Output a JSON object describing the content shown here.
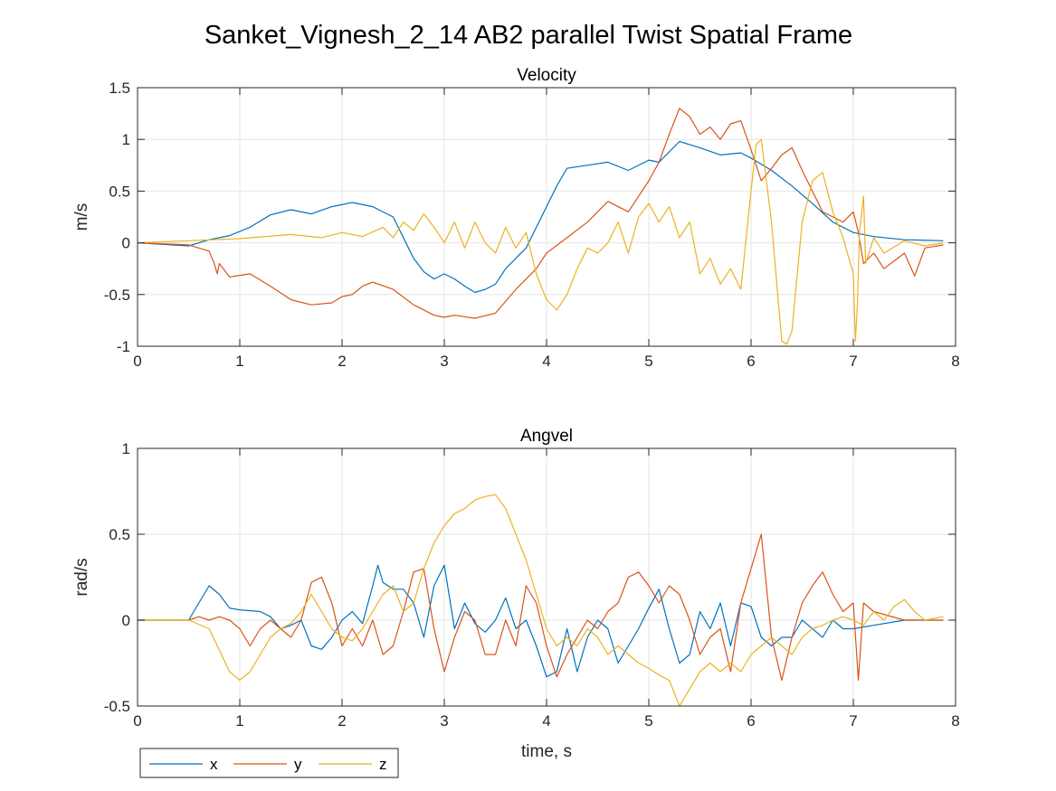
{
  "figure_title": "Sanket_Vignesh_2_14 AB2 parallel Twist Spatial Frame",
  "legend": [
    "x",
    "y",
    "z"
  ],
  "colors": {
    "x": "#0072BD",
    "y": "#D95319",
    "z": "#EDB120",
    "grid": "#e6e6e6",
    "axis": "#262626"
  },
  "chart_data": [
    {
      "type": "line",
      "title": "Velocity",
      "xlabel": "",
      "ylabel": "m/s",
      "xlim": [
        0,
        8
      ],
      "ylim": [
        -1,
        1.5
      ],
      "xticks": [
        "0",
        "1",
        "2",
        "3",
        "4",
        "5",
        "6",
        "7",
        "8"
      ],
      "yticks": [
        "-1",
        "-0.5",
        "0",
        "0.5",
        "1",
        "1.5"
      ],
      "grid": true,
      "series": [
        {
          "name": "x",
          "x": [
            0,
            0.5,
            0.7,
            0.9,
            1.1,
            1.3,
            1.5,
            1.7,
            1.9,
            2.1,
            2.3,
            2.5,
            2.6,
            2.7,
            2.8,
            2.9,
            3.0,
            3.1,
            3.2,
            3.3,
            3.4,
            3.5,
            3.6,
            3.8,
            4.0,
            4.1,
            4.2,
            4.4,
            4.6,
            4.8,
            5.0,
            5.1,
            5.3,
            5.5,
            5.7,
            5.9,
            6.0,
            6.2,
            6.4,
            6.6,
            6.8,
            7.0,
            7.2,
            7.5,
            7.88
          ],
          "y": [
            0,
            -0.03,
            0.03,
            0.07,
            0.15,
            0.27,
            0.32,
            0.28,
            0.35,
            0.39,
            0.35,
            0.25,
            0.05,
            -0.15,
            -0.28,
            -0.35,
            -0.3,
            -0.35,
            -0.42,
            -0.48,
            -0.45,
            -0.4,
            -0.25,
            -0.05,
            0.35,
            0.55,
            0.72,
            0.75,
            0.78,
            0.7,
            0.8,
            0.78,
            0.98,
            0.92,
            0.85,
            0.87,
            0.82,
            0.7,
            0.55,
            0.38,
            0.2,
            0.1,
            0.06,
            0.03,
            0.02
          ]
        },
        {
          "name": "y",
          "x": [
            0,
            0.5,
            0.7,
            0.75,
            0.78,
            0.8,
            0.9,
            1.1,
            1.3,
            1.5,
            1.7,
            1.9,
            2.0,
            2.1,
            2.2,
            2.3,
            2.5,
            2.7,
            2.9,
            3.0,
            3.1,
            3.3,
            3.5,
            3.7,
            3.9,
            4.0,
            4.2,
            4.4,
            4.6,
            4.8,
            5.0,
            5.1,
            5.2,
            5.3,
            5.4,
            5.5,
            5.6,
            5.7,
            5.8,
            5.9,
            6.0,
            6.1,
            6.2,
            6.3,
            6.4,
            6.5,
            6.7,
            6.8,
            6.9,
            7.0,
            7.05,
            7.1,
            7.2,
            7.3,
            7.5,
            7.6,
            7.7,
            7.88
          ],
          "y": [
            0,
            -0.02,
            -0.08,
            -0.2,
            -0.3,
            -0.2,
            -0.33,
            -0.3,
            -0.42,
            -0.55,
            -0.6,
            -0.58,
            -0.52,
            -0.5,
            -0.42,
            -0.38,
            -0.45,
            -0.6,
            -0.7,
            -0.72,
            -0.7,
            -0.73,
            -0.68,
            -0.45,
            -0.25,
            -0.1,
            0.05,
            0.2,
            0.4,
            0.3,
            0.6,
            0.78,
            1.05,
            1.3,
            1.22,
            1.05,
            1.12,
            1.0,
            1.15,
            1.18,
            0.9,
            0.6,
            0.72,
            0.85,
            0.92,
            0.7,
            0.3,
            0.25,
            0.2,
            0.3,
            0.1,
            -0.2,
            -0.1,
            -0.25,
            -0.1,
            -0.32,
            -0.05,
            -0.02
          ]
        },
        {
          "name": "z",
          "x": [
            0,
            0.5,
            1.0,
            1.5,
            1.8,
            2.0,
            2.2,
            2.4,
            2.5,
            2.6,
            2.7,
            2.8,
            2.9,
            3.0,
            3.1,
            3.2,
            3.3,
            3.4,
            3.5,
            3.6,
            3.7,
            3.8,
            3.9,
            4.0,
            4.1,
            4.2,
            4.3,
            4.4,
            4.5,
            4.6,
            4.7,
            4.8,
            4.9,
            5.0,
            5.1,
            5.2,
            5.3,
            5.4,
            5.5,
            5.6,
            5.7,
            5.8,
            5.9,
            6.0,
            6.05,
            6.1,
            6.2,
            6.3,
            6.35,
            6.4,
            6.5,
            6.6,
            6.7,
            6.8,
            6.9,
            7.0,
            7.02,
            7.04,
            7.06,
            7.1,
            7.12,
            7.2,
            7.3,
            7.5,
            7.7,
            7.88
          ],
          "y": [
            0,
            0.02,
            0.04,
            0.08,
            0.05,
            0.1,
            0.06,
            0.15,
            0.05,
            0.2,
            0.12,
            0.28,
            0.15,
            0.0,
            0.2,
            -0.05,
            0.2,
            0.0,
            -0.1,
            0.15,
            -0.05,
            0.1,
            -0.3,
            -0.55,
            -0.65,
            -0.5,
            -0.25,
            -0.05,
            -0.1,
            0.0,
            0.2,
            -0.1,
            0.25,
            0.38,
            0.2,
            0.35,
            0.05,
            0.2,
            -0.3,
            -0.15,
            -0.4,
            -0.25,
            -0.45,
            0.5,
            0.95,
            1.0,
            0.2,
            -0.95,
            -0.98,
            -0.85,
            0.2,
            0.6,
            0.68,
            0.3,
            0.05,
            -0.3,
            -0.95,
            -0.6,
            0.1,
            0.45,
            -0.2,
            0.05,
            -0.1,
            0.02,
            -0.03,
            0.0
          ]
        }
      ]
    },
    {
      "type": "line",
      "title": "Angvel",
      "xlabel": "time, s",
      "ylabel": "rad/s",
      "xlim": [
        0,
        8
      ],
      "ylim": [
        -0.5,
        1
      ],
      "xticks": [
        "0",
        "1",
        "2",
        "3",
        "4",
        "5",
        "6",
        "7",
        "8"
      ],
      "yticks": [
        "-0.5",
        "0",
        "0.5",
        "1"
      ],
      "grid": true,
      "series": [
        {
          "name": "x",
          "x": [
            0,
            0.5,
            0.6,
            0.7,
            0.8,
            0.9,
            1.0,
            1.2,
            1.3,
            1.4,
            1.5,
            1.6,
            1.7,
            1.8,
            1.9,
            2.0,
            2.1,
            2.2,
            2.3,
            2.35,
            2.4,
            2.5,
            2.6,
            2.7,
            2.8,
            2.9,
            3.0,
            3.1,
            3.2,
            3.3,
            3.4,
            3.5,
            3.6,
            3.7,
            3.8,
            3.9,
            4.0,
            4.1,
            4.2,
            4.3,
            4.4,
            4.5,
            4.6,
            4.7,
            4.8,
            4.9,
            5.0,
            5.1,
            5.2,
            5.3,
            5.4,
            5.5,
            5.6,
            5.7,
            5.8,
            5.9,
            6.0,
            6.1,
            6.2,
            6.3,
            6.4,
            6.5,
            6.6,
            6.7,
            6.8,
            6.9,
            7.0,
            7.2,
            7.5,
            7.88
          ],
          "y": [
            0,
            0,
            0.1,
            0.2,
            0.15,
            0.07,
            0.06,
            0.05,
            0.02,
            -0.05,
            -0.03,
            0.0,
            -0.15,
            -0.17,
            -0.1,
            0.0,
            0.05,
            -0.02,
            0.2,
            0.32,
            0.22,
            0.18,
            0.18,
            0.1,
            -0.1,
            0.2,
            0.32,
            -0.05,
            0.1,
            -0.02,
            -0.07,
            0.0,
            0.13,
            -0.05,
            0.0,
            -0.15,
            -0.33,
            -0.3,
            -0.05,
            -0.3,
            -0.1,
            0.0,
            -0.05,
            -0.25,
            -0.15,
            -0.05,
            0.07,
            0.18,
            -0.05,
            -0.25,
            -0.2,
            0.05,
            -0.05,
            0.1,
            -0.15,
            0.1,
            0.08,
            -0.1,
            -0.15,
            -0.1,
            -0.1,
            0.0,
            -0.05,
            -0.1,
            0.0,
            -0.05,
            -0.05,
            -0.03,
            0.0,
            0.0
          ]
        },
        {
          "name": "y",
          "x": [
            0,
            0.5,
            0.6,
            0.7,
            0.8,
            0.9,
            1.0,
            1.1,
            1.2,
            1.3,
            1.4,
            1.5,
            1.6,
            1.7,
            1.8,
            1.9,
            2.0,
            2.1,
            2.2,
            2.3,
            2.4,
            2.5,
            2.6,
            2.7,
            2.8,
            2.9,
            3.0,
            3.1,
            3.2,
            3.3,
            3.4,
            3.5,
            3.6,
            3.7,
            3.8,
            3.9,
            4.0,
            4.1,
            4.2,
            4.3,
            4.4,
            4.5,
            4.6,
            4.7,
            4.8,
            4.9,
            5.0,
            5.1,
            5.2,
            5.3,
            5.4,
            5.5,
            5.6,
            5.7,
            5.8,
            5.9,
            6.0,
            6.1,
            6.2,
            6.3,
            6.4,
            6.5,
            6.6,
            6.7,
            6.8,
            6.9,
            7.0,
            7.05,
            7.1,
            7.2,
            7.5,
            7.88
          ],
          "y": [
            0,
            0,
            0.02,
            0.0,
            0.02,
            0.0,
            -0.05,
            -0.15,
            -0.05,
            0.0,
            -0.05,
            -0.1,
            0.0,
            0.22,
            0.25,
            0.1,
            -0.15,
            -0.05,
            -0.15,
            0.0,
            -0.2,
            -0.15,
            0.05,
            0.28,
            0.3,
            -0.05,
            -0.3,
            -0.1,
            0.05,
            0.0,
            -0.2,
            -0.2,
            0.0,
            -0.15,
            0.2,
            0.1,
            -0.15,
            -0.33,
            -0.2,
            -0.1,
            0.0,
            -0.05,
            0.05,
            0.1,
            0.25,
            0.28,
            0.2,
            0.1,
            0.2,
            0.15,
            0.0,
            -0.2,
            -0.1,
            -0.05,
            -0.3,
            0.1,
            0.3,
            0.5,
            -0.1,
            -0.35,
            -0.1,
            0.1,
            0.2,
            0.28,
            0.15,
            0.05,
            0.1,
            -0.35,
            0.1,
            0.05,
            0.0,
            0.0
          ]
        },
        {
          "name": "z",
          "x": [
            0,
            0.5,
            0.7,
            0.9,
            1.0,
            1.1,
            1.2,
            1.3,
            1.4,
            1.5,
            1.6,
            1.7,
            1.8,
            1.9,
            2.0,
            2.1,
            2.2,
            2.3,
            2.4,
            2.5,
            2.6,
            2.7,
            2.8,
            2.9,
            3.0,
            3.1,
            3.2,
            3.3,
            3.4,
            3.5,
            3.6,
            3.7,
            3.8,
            3.9,
            4.0,
            4.1,
            4.2,
            4.3,
            4.4,
            4.5,
            4.6,
            4.7,
            4.8,
            4.9,
            5.0,
            5.1,
            5.2,
            5.3,
            5.4,
            5.5,
            5.6,
            5.7,
            5.8,
            5.9,
            6.0,
            6.1,
            6.2,
            6.3,
            6.4,
            6.5,
            6.6,
            6.7,
            6.8,
            6.9,
            7.0,
            7.1,
            7.2,
            7.3,
            7.4,
            7.5,
            7.6,
            7.7,
            7.88
          ],
          "y": [
            0,
            0.0,
            -0.05,
            -0.3,
            -0.35,
            -0.3,
            -0.2,
            -0.1,
            -0.05,
            -0.02,
            0.05,
            0.15,
            0.05,
            -0.05,
            -0.1,
            -0.12,
            -0.05,
            0.05,
            0.15,
            0.2,
            0.05,
            0.1,
            0.3,
            0.45,
            0.55,
            0.62,
            0.65,
            0.7,
            0.72,
            0.73,
            0.65,
            0.5,
            0.35,
            0.15,
            -0.05,
            -0.15,
            -0.1,
            -0.15,
            -0.05,
            -0.1,
            -0.2,
            -0.15,
            -0.2,
            -0.25,
            -0.28,
            -0.32,
            -0.35,
            -0.5,
            -0.4,
            -0.3,
            -0.25,
            -0.3,
            -0.25,
            -0.3,
            -0.2,
            -0.15,
            -0.1,
            -0.15,
            -0.2,
            -0.1,
            -0.05,
            -0.03,
            0.0,
            0.02,
            0.0,
            -0.03,
            0.05,
            0.0,
            0.08,
            0.12,
            0.05,
            0.0,
            0.02
          ]
        }
      ]
    }
  ]
}
